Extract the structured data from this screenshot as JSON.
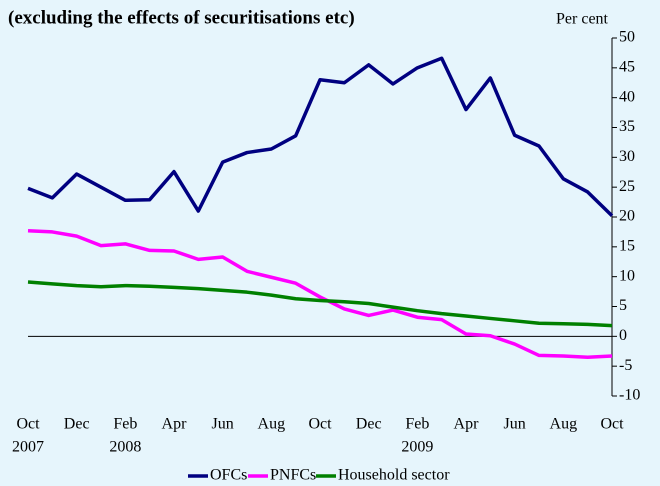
{
  "chart_data": {
    "type": "line",
    "title": "(excluding the effects of securitisations etc)",
    "y_label": "Per cent",
    "categories": [
      "Oct",
      null,
      "Dec",
      null,
      "Feb",
      null,
      "Apr",
      null,
      "Jun",
      null,
      "Aug",
      null,
      "Oct",
      null,
      "Dec",
      null,
      "Feb",
      null,
      "Apr",
      null,
      "Jun",
      null,
      "Aug",
      null,
      "Oct"
    ],
    "years": [
      "2007",
      null,
      null,
      null,
      "2008",
      null,
      null,
      null,
      null,
      null,
      null,
      null,
      null,
      null,
      null,
      null,
      "2009",
      null,
      null,
      null,
      null,
      null,
      null,
      null,
      null
    ],
    "series": [
      {
        "name": "OFCs",
        "color": "#000080",
        "values": [
          24.8,
          23.2,
          27.2,
          25.0,
          22.8,
          22.9,
          27.6,
          21.0,
          29.2,
          30.8,
          31.4,
          33.6,
          43.0,
          42.5,
          45.5,
          42.3,
          45.0,
          46.6,
          38.0,
          43.3,
          33.7,
          31.9,
          26.4,
          24.2,
          20.2
        ]
      },
      {
        "name": "PNFCs",
        "color": "#ff00ff",
        "values": [
          17.7,
          17.5,
          16.8,
          15.2,
          15.5,
          14.4,
          14.3,
          12.9,
          13.3,
          10.9,
          9.9,
          8.9,
          6.6,
          4.6,
          3.5,
          4.4,
          3.2,
          2.8,
          0.4,
          0.1,
          -1.3,
          -3.2,
          -3.3,
          -3.5,
          -3.3
        ]
      },
      {
        "name": "Household sector",
        "color": "#008000",
        "values": [
          9.1,
          8.8,
          8.5,
          8.3,
          8.5,
          8.4,
          8.2,
          8.0,
          7.7,
          7.4,
          6.9,
          6.3,
          6.0,
          5.8,
          5.5,
          4.9,
          4.3,
          3.8,
          3.4,
          3.0,
          2.6,
          2.2,
          2.1,
          2.0,
          1.8
        ]
      }
    ],
    "ylim": [
      -10,
      50
    ],
    "yticks": [
      -10,
      -5,
      0,
      5,
      10,
      15,
      20,
      25,
      30,
      35,
      40,
      45,
      50
    ],
    "y_axis_side": "right",
    "legend": "bottom"
  }
}
